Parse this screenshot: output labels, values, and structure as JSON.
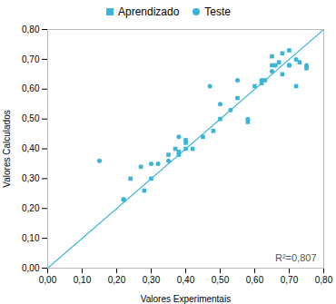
{
  "chart_data": {
    "type": "scatter",
    "xlabel": "Valores Experimentais",
    "ylabel": "Valores Calculados",
    "annotation": "R²=0,807",
    "legend": "top",
    "grid": false,
    "series": [
      {
        "name": "Aprendizado",
        "type": "scatter",
        "marker": "square",
        "color": "#3ab4d8",
        "x": [
          0.22,
          0.24,
          0.28,
          0.3,
          0.35,
          0.37,
          0.38,
          0.38,
          0.4,
          0.4,
          0.42,
          0.45,
          0.48,
          0.5,
          0.55,
          0.58,
          0.6,
          0.62,
          0.63,
          0.65,
          0.65,
          0.67,
          0.68,
          0.68,
          0.7,
          0.7,
          0.72,
          0.73,
          0.75
        ],
        "values": [
          0.23,
          0.3,
          0.26,
          0.3,
          0.38,
          0.4,
          0.39,
          0.38,
          0.4,
          0.42,
          0.4,
          0.44,
          0.46,
          0.5,
          0.57,
          0.49,
          0.61,
          0.62,
          0.63,
          0.68,
          0.71,
          0.69,
          0.65,
          0.72,
          0.68,
          0.73,
          0.61,
          0.69,
          0.67
        ]
      },
      {
        "name": "Teste",
        "type": "scatter",
        "marker": "circle",
        "color": "#3ab4d8",
        "x": [
          0.15,
          0.22,
          0.27,
          0.3,
          0.32,
          0.35,
          0.38,
          0.4,
          0.47,
          0.5,
          0.53,
          0.55,
          0.58,
          0.62,
          0.65,
          0.66,
          0.7,
          0.72,
          0.75
        ],
        "values": [
          0.36,
          0.23,
          0.34,
          0.35,
          0.35,
          0.36,
          0.44,
          0.43,
          0.61,
          0.55,
          0.53,
          0.63,
          0.5,
          0.63,
          0.66,
          0.68,
          0.68,
          0.7,
          0.68
        ]
      },
      {
        "type": "line",
        "color": "#3ab4d8",
        "x": [
          0.0,
          0.8
        ],
        "values": [
          0.0,
          0.8
        ]
      }
    ],
    "xlim": [
      0.0,
      0.8
    ],
    "ylim": [
      0.0,
      0.8
    ],
    "xticks": [
      {
        "value": 0.0,
        "label": "0,00"
      },
      {
        "value": 0.1,
        "label": "0,10"
      },
      {
        "value": 0.2,
        "label": "0,20"
      },
      {
        "value": 0.3,
        "label": "0,30"
      },
      {
        "value": 0.4,
        "label": "0,40"
      },
      {
        "value": 0.5,
        "label": "0,50"
      },
      {
        "value": 0.6,
        "label": "0,60"
      },
      {
        "value": 0.7,
        "label": "0,70"
      },
      {
        "value": 0.8,
        "label": "0,80"
      }
    ],
    "yticks": [
      {
        "value": 0.0,
        "label": "0,00"
      },
      {
        "value": 0.1,
        "label": "0,10"
      },
      {
        "value": 0.2,
        "label": "0,20"
      },
      {
        "value": 0.3,
        "label": "0,30"
      },
      {
        "value": 0.4,
        "label": "0,40"
      },
      {
        "value": 0.5,
        "label": "0,50"
      },
      {
        "value": 0.6,
        "label": "0,60"
      },
      {
        "value": 0.7,
        "label": "0,70"
      },
      {
        "value": 0.8,
        "label": "0,80"
      }
    ]
  }
}
